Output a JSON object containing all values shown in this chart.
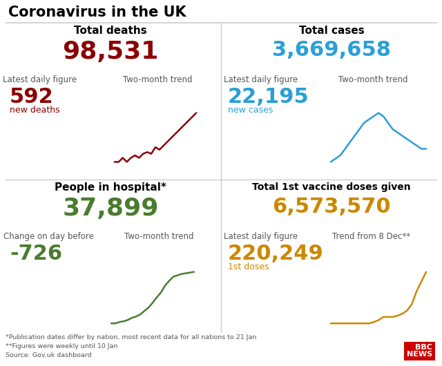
{
  "title": "Coronavirus in the UK",
  "background_color": "#ffffff",
  "divider_color": "#cccccc",
  "label_color": "#555555",
  "quad_titles": [
    "Total deaths",
    "Total cases",
    "People in hospital*",
    "Total 1st vaccine doses given"
  ],
  "main_values": [
    "98,531",
    "3,669,658",
    "37,899",
    "6,573,570"
  ],
  "main_colors": [
    "#8b0000",
    "#2a9fd6",
    "#4a7c2f",
    "#cc8800"
  ],
  "sub_labels_tl": [
    "Latest daily figure",
    "Two-month trend"
  ],
  "sub_labels_tr": [
    "Latest daily figure",
    "Two-month trend"
  ],
  "sub_labels_bl": [
    "Change on day before",
    "Two-month trend"
  ],
  "sub_labels_br": [
    "Latest daily figure",
    "Trend from 8 Dec**"
  ],
  "sub_values": [
    "592",
    "22,195",
    "-726",
    "220,249"
  ],
  "sub_value_labels": [
    "new deaths",
    "new cases",
    "",
    "1st doses"
  ],
  "sub_value_colors": [
    "#8b0000",
    "#2a9fd6",
    "#4a7c2f",
    "#cc8800"
  ],
  "footnotes": [
    "*Publication dates differ by nation, most recent data for all nations to 21 Jan",
    "**Figures were weekly until 10 Jan",
    "Source: Gov.uk dashboard"
  ],
  "trend_deaths_x": [
    0,
    1,
    2,
    3,
    4,
    5,
    6,
    7,
    8,
    9,
    10,
    11,
    12,
    13,
    14,
    15,
    16,
    17,
    18,
    19,
    20
  ],
  "trend_deaths_y": [
    2,
    2,
    2.5,
    2,
    2.5,
    2.8,
    2.5,
    3,
    3.2,
    3,
    3.8,
    3.5,
    4,
    4.5,
    5,
    5.5,
    6,
    6.5,
    7,
    7.5,
    8
  ],
  "trend_deaths_color": "#8b0000",
  "trend_cases_x": [
    0,
    1,
    2,
    3,
    4,
    5,
    6,
    7,
    8,
    9,
    10,
    11,
    12,
    13,
    14,
    15,
    16,
    17,
    18,
    19,
    20
  ],
  "trend_cases_y": [
    1,
    1.5,
    2,
    3,
    4,
    5,
    6,
    7,
    7.5,
    8,
    8.5,
    8,
    7,
    6,
    5.5,
    5,
    4.5,
    4,
    3.5,
    3,
    3
  ],
  "trend_cases_color": "#2a9fd6",
  "trend_hospital_x": [
    0,
    1,
    2,
    3,
    4,
    5,
    6,
    7,
    8,
    9,
    10,
    11,
    12,
    13,
    14,
    15,
    16,
    17,
    18,
    19,
    20
  ],
  "trend_hospital_y": [
    1,
    1,
    1.2,
    1.3,
    1.5,
    1.8,
    2,
    2.3,
    2.8,
    3.3,
    4,
    4.8,
    5.5,
    6.5,
    7.2,
    7.8,
    8,
    8.2,
    8.3,
    8.4,
    8.5
  ],
  "trend_hospital_color": "#4a7c2f",
  "trend_vaccine_x": [
    0,
    1,
    2,
    3,
    4,
    5,
    6,
    7,
    8,
    9,
    10,
    11,
    12,
    13,
    14,
    15,
    16,
    17,
    18,
    19,
    20
  ],
  "trend_vaccine_y": [
    1,
    1,
    1,
    1,
    1,
    1,
    1,
    1,
    1,
    1.2,
    1.5,
    2,
    2,
    2,
    2.2,
    2.5,
    3,
    4,
    6,
    7.5,
    9
  ],
  "trend_vaccine_color": "#cc8800",
  "bbc_label": "BBC\nNEWS",
  "bbc_bg": "#cc0000"
}
